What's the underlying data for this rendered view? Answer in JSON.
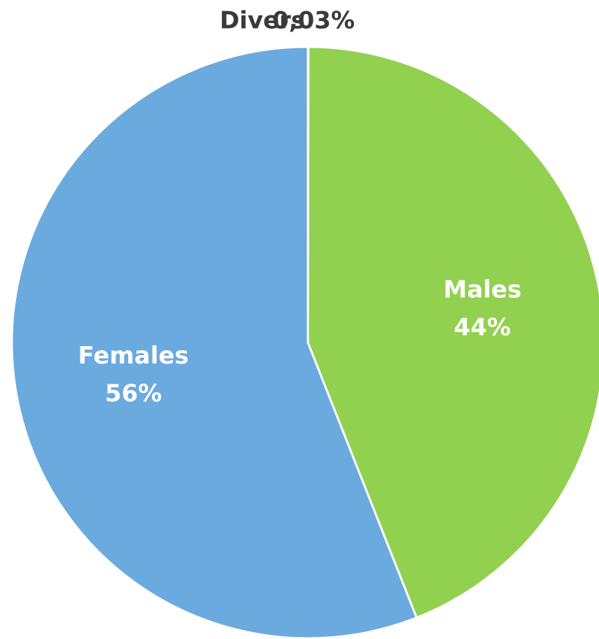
{
  "chart_data": {
    "type": "pie",
    "categories": [
      "Divers",
      "Males",
      "Females"
    ],
    "values": [
      0.03,
      44,
      56
    ],
    "value_labels": [
      "0,03%",
      "44%",
      "56%"
    ],
    "colors": [
      "#3a3a3a",
      "#92d050",
      "#6aaade"
    ]
  }
}
